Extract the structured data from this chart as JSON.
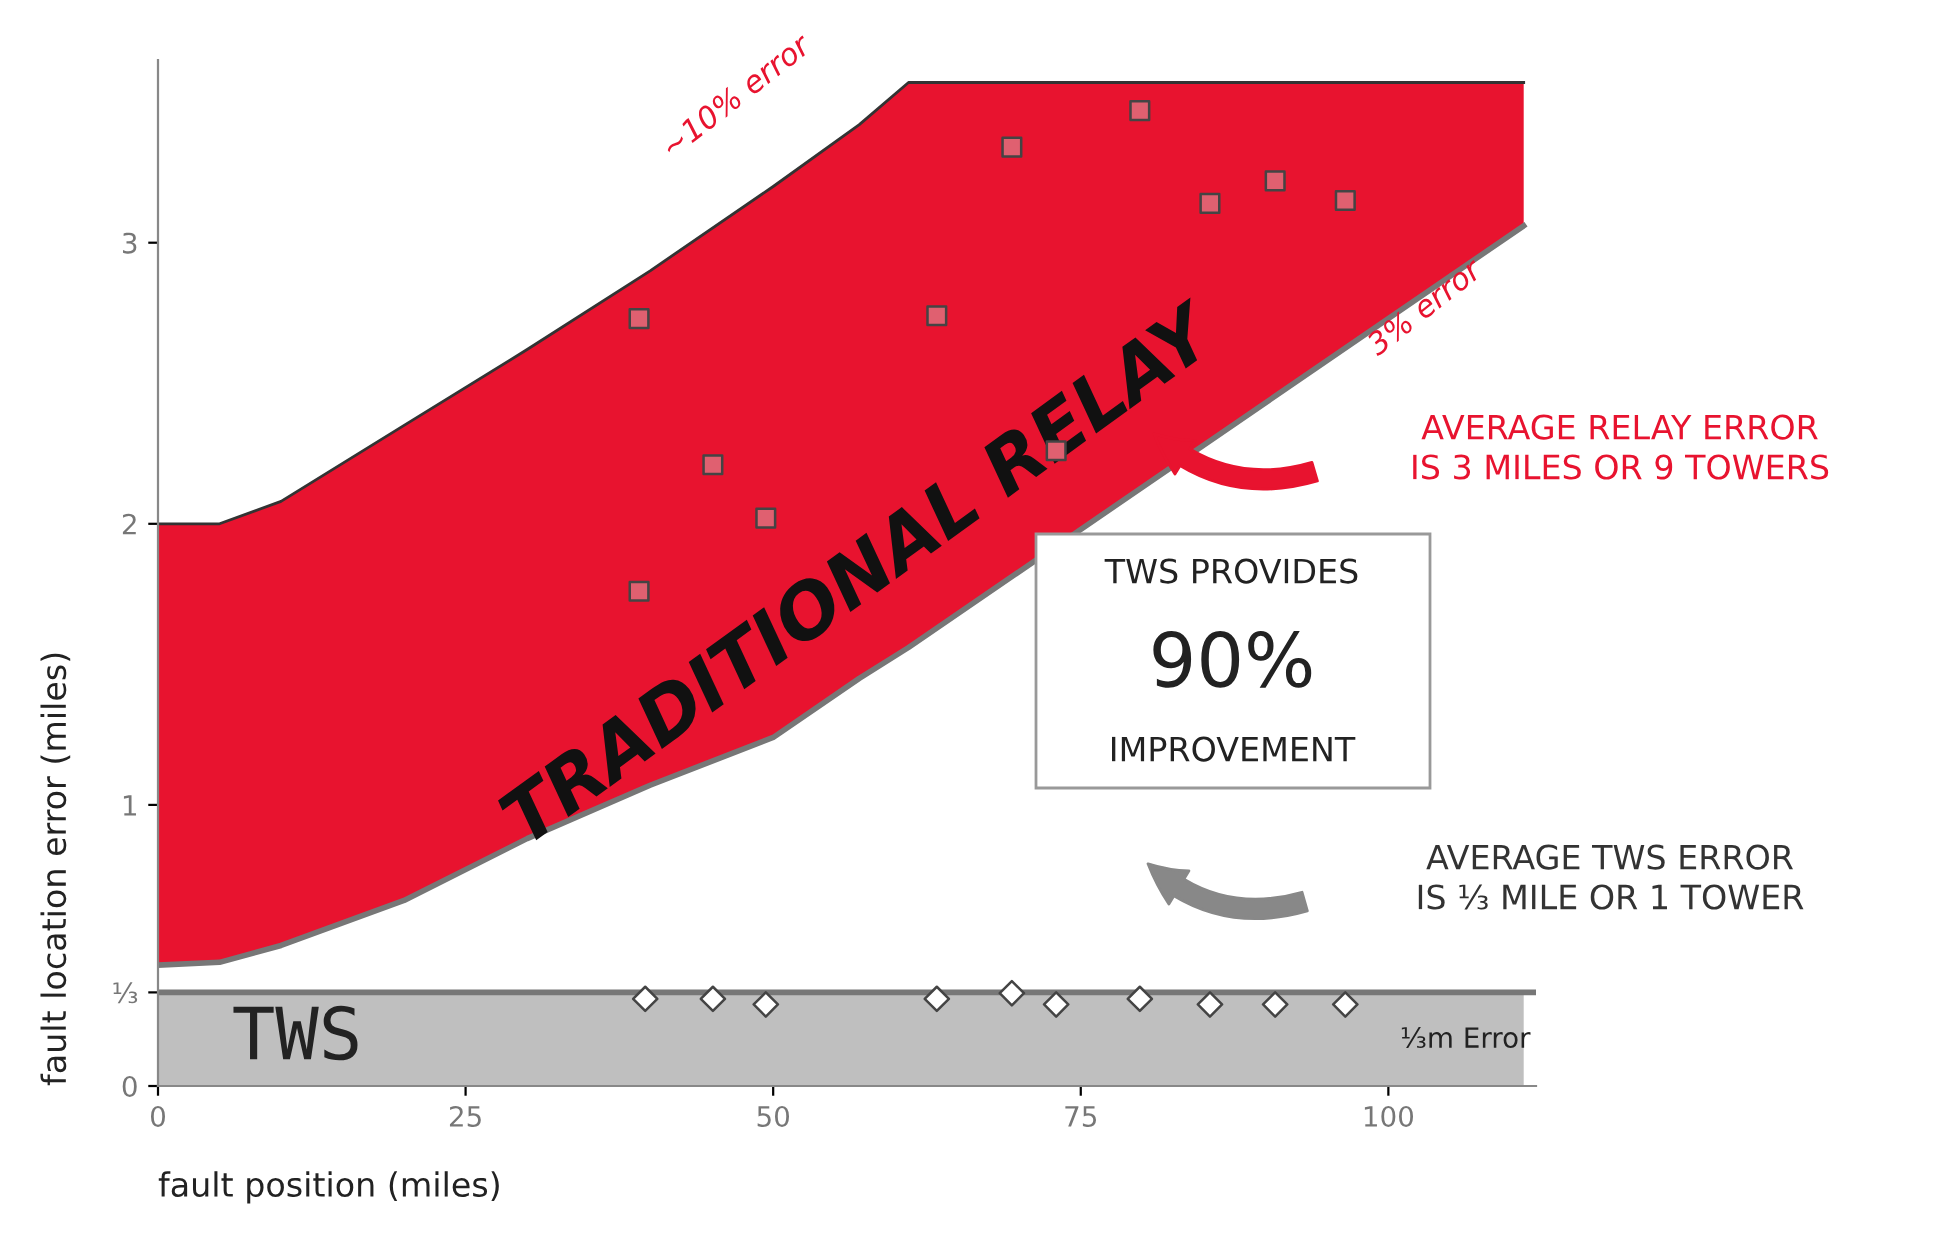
{
  "chart_data": {
    "type": "scatter",
    "xlabel": "fault position (miles)",
    "ylabel": "fault location error (miles)",
    "xlim": [
      0,
      112
    ],
    "ylim": [
      0,
      3.65
    ],
    "xticks": [
      0,
      25,
      50,
      75,
      100
    ],
    "yticks": [
      0,
      {
        "value": 0.333,
        "label": "⅓"
      },
      1,
      2,
      3
    ],
    "grid": false,
    "legend": false,
    "series": [
      {
        "type": "line",
        "color": "#777777",
        "x": [
          0,
          5,
          10,
          20,
          30,
          40,
          50,
          57,
          61,
          111
        ],
        "values": [
          0.43,
          0.44,
          0.5,
          0.66,
          0.88,
          1.07,
          1.24,
          1.45,
          1.56,
          3.06
        ]
      },
      {
        "name": "TRADITIONAL RELAY",
        "type": "area",
        "color": "#e8132f",
        "x": [
          0,
          5,
          10,
          20,
          30,
          40,
          50,
          57,
          61,
          111
        ],
        "values": [
          2.0,
          2.0,
          2.08,
          2.35,
          2.62,
          2.9,
          3.2,
          3.42,
          3.57,
          3.57
        ]
      },
      {
        "marker": "square",
        "color": "#e06070",
        "x": [
          39.1,
          45.1,
          49.4,
          39.1,
          63.3,
          69.4,
          73.0,
          79.8,
          85.5,
          90.8,
          96.5
        ],
        "values": [
          2.73,
          2.21,
          2.02,
          1.76,
          2.74,
          3.34,
          2.26,
          3.47,
          3.14,
          3.22,
          3.15
        ]
      },
      {
        "marker": "diamond",
        "color": "#ffffff",
        "x": [
          39.6,
          45.1,
          49.4,
          63.3,
          69.4,
          73.0,
          79.8,
          85.5,
          90.8,
          96.5
        ],
        "values": [
          0.31,
          0.31,
          0.29,
          0.31,
          0.33,
          0.29,
          0.31,
          0.29,
          0.29,
          0.29
        ]
      }
    ],
    "ref_lines": [
      {
        "axis": "y",
        "value": 0.333,
        "color": "#777777"
      }
    ],
    "bands": [
      {
        "axis": "y",
        "from": 0,
        "to": 0.333,
        "label": "TWS",
        "color": "#bfbfbf"
      }
    ],
    "annotations": [
      "~10% error",
      "3% error",
      "AVERAGE RELAY ERROR\nIS 3 MILES OR 9 TOWERS",
      "TWS PROVIDES\n90%\nIMPROVEMENT",
      "AVERAGE TWS ERROR\nIS ⅓ MILE OR 1 TOWER",
      "⅓m Error"
    ]
  }
}
